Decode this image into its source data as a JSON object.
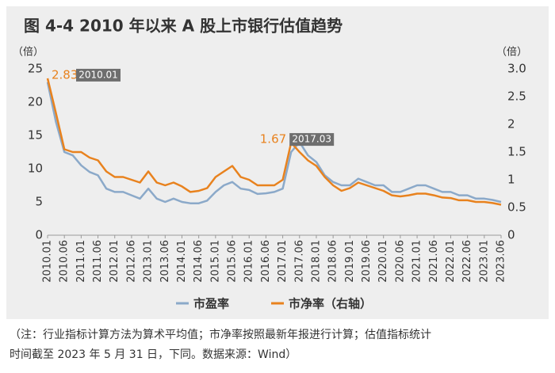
{
  "chart_data": {
    "type": "line",
    "title": "图 4-4   2010 年以来 A 股上市银行估值趋势",
    "y_label": "（倍）",
    "y2_label": "（倍）",
    "note": [
      "（注：行业指标计算方法为算术平均值；市净率按照最新年报进行计算；估值指标统计",
      "时间截至 2023 年 5 月 31 日，下同。数据来源：Wind）"
    ],
    "categories": [
      "2010.01",
      null,
      "2010.06",
      null,
      "2011.01",
      null,
      "2011.06",
      null,
      "2012.01",
      null,
      "2012.06",
      null,
      "2013.01",
      null,
      "2013.06",
      null,
      "2014.01",
      null,
      "2014.06",
      null,
      "2015.01",
      null,
      "2015.06",
      null,
      "2016.01",
      null,
      "2016.06",
      null,
      "2017.01",
      null,
      "2017.06",
      null,
      "2018.01",
      null,
      "2018.06",
      null,
      "2019.01",
      null,
      "2019.06",
      null,
      "2020.01",
      null,
      "2020.06",
      null,
      "2021.01",
      null,
      "2021.06",
      null,
      "2022.01",
      null,
      "2022.06",
      null,
      "2023.01",
      null,
      "2023.06"
    ],
    "series": [
      {
        "name": "市盈率",
        "color": "#8ba9c9",
        "values": [
          23,
          17,
          12.5,
          12,
          10.5,
          9.5,
          9,
          7,
          6.5,
          6.5,
          6,
          5.5,
          7,
          5.5,
          5,
          5.5,
          5,
          4.8,
          4.8,
          5.2,
          6.5,
          7.5,
          8,
          7,
          6.8,
          6.2,
          6.3,
          6.5,
          7,
          12.5,
          14,
          12,
          11,
          9,
          8,
          7.5,
          7.5,
          8.5,
          8,
          7.5,
          7.5,
          6.5,
          6.5,
          7,
          7.5,
          7.5,
          7,
          6.5,
          6.5,
          6,
          6,
          5.5,
          5.5,
          5.3,
          5
        ]
      },
      {
        "name": "市净率（右轴）",
        "color": "#e8821e",
        "axis": "y2",
        "values": [
          2.83,
          2.2,
          1.55,
          1.5,
          1.5,
          1.4,
          1.35,
          1.15,
          1.05,
          1.05,
          1.0,
          0.95,
          1.15,
          0.95,
          0.9,
          0.95,
          0.88,
          0.78,
          0.8,
          0.85,
          1.05,
          1.15,
          1.25,
          1.05,
          1.0,
          0.9,
          0.9,
          0.9,
          1.0,
          1.67,
          1.5,
          1.35,
          1.25,
          1.05,
          0.9,
          0.8,
          0.85,
          0.95,
          0.9,
          0.85,
          0.8,
          0.72,
          0.7,
          0.72,
          0.75,
          0.75,
          0.72,
          0.68,
          0.67,
          0.63,
          0.63,
          0.6,
          0.6,
          0.58,
          0.55
        ]
      }
    ],
    "annotations": [
      {
        "value": 2.83,
        "date": "2010.01"
      },
      {
        "value": 1.67,
        "date": "2017.03"
      }
    ],
    "ylim": [
      0,
      25
    ],
    "yticks": [
      0,
      5,
      10,
      15,
      20,
      25
    ],
    "y2lim": [
      0,
      3.0
    ],
    "y2ticks": [
      0,
      0.5,
      1.0,
      1.5,
      2.0,
      2.5,
      {
        "value": 3.0,
        "label": "3.0"
      }
    ]
  }
}
